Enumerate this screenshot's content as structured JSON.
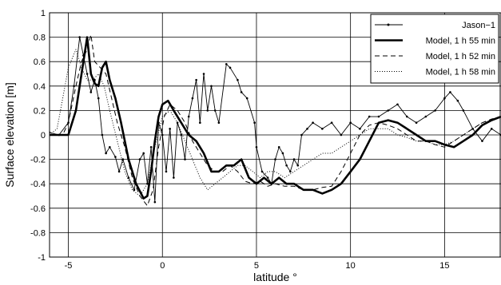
{
  "chart_data": {
    "type": "line",
    "xlabel": "latitude °",
    "ylabel": "Surface elevation [m]",
    "xlim": [
      -6,
      18
    ],
    "ylim": [
      -1,
      1
    ],
    "xticks": [
      -5,
      0,
      5,
      10,
      15
    ],
    "yticks": [
      -1,
      -0.8,
      -0.6,
      -0.4,
      -0.2,
      0,
      0.2,
      0.4,
      0.6,
      0.8,
      1
    ],
    "grid": true,
    "legend_position": "top-right",
    "series": [
      {
        "name": "Jason−1",
        "style": "thin-solid-dots",
        "x": [
          -6.0,
          -5.5,
          -5.0,
          -4.7,
          -4.4,
          -4.2,
          -4.0,
          -3.8,
          -3.6,
          -3.4,
          -3.2,
          -3.0,
          -2.8,
          -2.5,
          -2.3,
          -2.1,
          -1.8,
          -1.5,
          -1.2,
          -1.0,
          -0.8,
          -0.6,
          -0.4,
          -0.2,
          0.0,
          0.2,
          0.4,
          0.6,
          0.8,
          1.0,
          1.2,
          1.4,
          1.6,
          1.8,
          2.0,
          2.2,
          2.4,
          2.6,
          2.8,
          3.0,
          3.4,
          3.6,
          4.0,
          4.2,
          4.5,
          4.9,
          5.0,
          5.3,
          5.6,
          5.8,
          6.0,
          6.2,
          6.4,
          6.6,
          6.8,
          7.0,
          7.2,
          7.4,
          7.7,
          8.0,
          8.5,
          9.0,
          9.5,
          10.0,
          10.5,
          11.0,
          11.5,
          12.0,
          12.5,
          13.0,
          13.5,
          14.0,
          14.5,
          15.0,
          15.3,
          15.7,
          16.0,
          16.5,
          17.0,
          17.5,
          18.0
        ],
        "y": [
          0.02,
          0.0,
          0.1,
          0.4,
          0.8,
          0.65,
          0.5,
          0.35,
          0.45,
          0.3,
          0.0,
          -0.15,
          -0.1,
          -0.18,
          -0.3,
          -0.2,
          -0.35,
          -0.45,
          -0.2,
          -0.15,
          -0.4,
          -0.1,
          -0.55,
          0.1,
          0.0,
          -0.3,
          0.05,
          -0.35,
          0.1,
          0.0,
          -0.2,
          0.15,
          0.3,
          0.45,
          0.1,
          0.5,
          0.2,
          0.4,
          0.2,
          0.1,
          0.58,
          0.55,
          0.45,
          0.35,
          0.3,
          0.1,
          -0.1,
          -0.3,
          -0.35,
          -0.4,
          -0.2,
          -0.1,
          -0.15,
          -0.25,
          -0.3,
          -0.2,
          -0.25,
          0.0,
          0.05,
          0.1,
          0.05,
          0.1,
          0.0,
          0.1,
          0.05,
          0.15,
          0.15,
          0.2,
          0.25,
          0.15,
          0.1,
          0.15,
          0.2,
          0.3,
          0.35,
          0.28,
          0.2,
          0.05,
          -0.05,
          0.05,
          0.0
        ]
      },
      {
        "name": "Model, 1 h 55 min",
        "style": "thick-solid",
        "x": [
          -6.0,
          -5.0,
          -4.6,
          -4.2,
          -4.0,
          -3.8,
          -3.6,
          -3.4,
          -3.2,
          -3.0,
          -2.8,
          -2.5,
          -2.2,
          -1.8,
          -1.4,
          -1.0,
          -0.8,
          -0.6,
          -0.4,
          -0.2,
          0.0,
          0.3,
          0.6,
          1.0,
          1.4,
          1.8,
          2.2,
          2.6,
          3.0,
          3.4,
          3.8,
          4.2,
          4.6,
          5.0,
          5.4,
          5.8,
          6.2,
          6.6,
          7.0,
          7.5,
          8.0,
          8.5,
          9.0,
          9.5,
          10.0,
          10.5,
          11.0,
          11.5,
          12.0,
          12.5,
          13.0,
          13.5,
          14.0,
          14.5,
          15.0,
          15.5,
          16.0,
          16.5,
          17.0,
          17.5,
          18.0
        ],
        "y": [
          0.0,
          0.0,
          0.2,
          0.6,
          0.8,
          0.5,
          0.42,
          0.4,
          0.55,
          0.6,
          0.45,
          0.3,
          0.1,
          -0.2,
          -0.4,
          -0.52,
          -0.5,
          -0.3,
          -0.05,
          0.15,
          0.25,
          0.28,
          0.2,
          0.1,
          0.0,
          -0.05,
          -0.15,
          -0.3,
          -0.3,
          -0.25,
          -0.25,
          -0.2,
          -0.35,
          -0.4,
          -0.35,
          -0.4,
          -0.35,
          -0.4,
          -0.4,
          -0.45,
          -0.45,
          -0.48,
          -0.45,
          -0.4,
          -0.3,
          -0.2,
          -0.05,
          0.1,
          0.12,
          0.1,
          0.05,
          0.0,
          -0.05,
          -0.05,
          -0.08,
          -0.1,
          -0.05,
          0.0,
          0.08,
          0.12,
          0.15
        ]
      },
      {
        "name": "Model, 1 h 52 min",
        "style": "dashed",
        "x": [
          -6.0,
          -5.3,
          -5.0,
          -4.6,
          -4.3,
          -4.0,
          -3.8,
          -3.6,
          -3.3,
          -3.0,
          -2.7,
          -2.4,
          -2.0,
          -1.6,
          -1.2,
          -0.8,
          -0.5,
          -0.2,
          0.1,
          0.4,
          0.8,
          1.2,
          1.6,
          2.0,
          2.4,
          2.8,
          3.2,
          3.6,
          4.0,
          4.4,
          4.8,
          5.2,
          5.6,
          6.0,
          6.5,
          7.0,
          7.5,
          8.0,
          8.5,
          9.0,
          9.5,
          10.0,
          10.5,
          11.0,
          11.5,
          12.0,
          12.5,
          13.0,
          13.5,
          14.0,
          14.5,
          15.0,
          15.5,
          16.0,
          16.5,
          17.0,
          17.5,
          18.0
        ],
        "y": [
          0.0,
          0.0,
          0.1,
          0.4,
          0.6,
          0.7,
          0.82,
          0.6,
          0.55,
          0.5,
          0.3,
          0.1,
          -0.1,
          -0.35,
          -0.5,
          -0.58,
          -0.45,
          -0.1,
          0.15,
          0.25,
          0.2,
          0.1,
          -0.05,
          -0.15,
          -0.25,
          -0.3,
          -0.3,
          -0.25,
          -0.3,
          -0.38,
          -0.4,
          -0.38,
          -0.42,
          -0.4,
          -0.42,
          -0.42,
          -0.45,
          -0.45,
          -0.43,
          -0.42,
          -0.3,
          -0.15,
          0.0,
          0.08,
          0.1,
          0.08,
          0.05,
          0.0,
          -0.05,
          -0.05,
          -0.08,
          -0.1,
          -0.05,
          0.0,
          0.05,
          0.1,
          0.13,
          0.15
        ]
      },
      {
        "name": "Model, 1 h 58 min",
        "style": "dotted",
        "x": [
          -6.0,
          -5.6,
          -5.3,
          -5.0,
          -4.6,
          -4.3,
          -4.0,
          -3.7,
          -3.4,
          -3.1,
          -2.8,
          -2.4,
          -2.0,
          -1.6,
          -1.2,
          -0.8,
          -0.4,
          0.0,
          0.4,
          0.8,
          1.2,
          1.6,
          2.0,
          2.4,
          2.8,
          3.2,
          3.6,
          4.0,
          4.4,
          4.8,
          5.2,
          5.6,
          6.0,
          6.5,
          7.0,
          7.5,
          8.0,
          8.5,
          9.0,
          9.5,
          10.0,
          10.5,
          11.0,
          11.5,
          12.0,
          12.5,
          13.0,
          13.5,
          14.0,
          14.5,
          15.0,
          15.5,
          16.0,
          16.5,
          17.0,
          17.5,
          18.0
        ],
        "y": [
          0.0,
          0.05,
          0.3,
          0.55,
          0.7,
          0.55,
          0.45,
          0.45,
          0.5,
          0.4,
          0.2,
          -0.05,
          -0.3,
          -0.45,
          -0.5,
          -0.4,
          -0.1,
          0.15,
          0.2,
          0.1,
          -0.05,
          -0.2,
          -0.35,
          -0.45,
          -0.4,
          -0.35,
          -0.3,
          -0.25,
          -0.25,
          -0.3,
          -0.35,
          -0.3,
          -0.3,
          -0.35,
          -0.3,
          -0.25,
          -0.2,
          -0.15,
          -0.15,
          -0.1,
          -0.05,
          0.0,
          0.05,
          0.05,
          0.05,
          0.0,
          -0.02,
          -0.05,
          -0.05,
          -0.08,
          -0.08,
          -0.05,
          0.0,
          0.05,
          0.1,
          0.12,
          0.15
        ]
      }
    ]
  }
}
